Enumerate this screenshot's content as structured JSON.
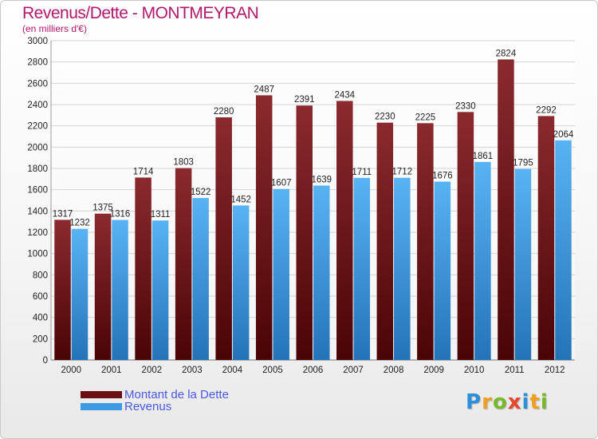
{
  "header": {
    "title": "Revenus/Dette - MONTMEYRAN",
    "subtitle": "(en milliers d'€)"
  },
  "colors": {
    "dette": "#6b0f14",
    "revenus": "#3d9be4",
    "title": "#b0186e",
    "legend_text": "#4b57e6"
  },
  "legend": [
    {
      "label": "Montant de la Dette",
      "color": "#6b0f14"
    },
    {
      "label": "Revenus",
      "color": "#3d9be4"
    }
  ],
  "logo": {
    "text": "Proxiti"
  },
  "chart_data": {
    "type": "bar",
    "title": "Revenus/Dette - MONTMEYRAN",
    "subtitle": "(en milliers d'€)",
    "xlabel": "",
    "ylabel": "",
    "categories": [
      "2000",
      "2001",
      "2002",
      "2003",
      "2004",
      "2005",
      "2006",
      "2007",
      "2008",
      "2009",
      "2010",
      "2011",
      "2012"
    ],
    "series": [
      {
        "name": "Montant de la Dette",
        "color": "#6b0f14",
        "values": [
          1317,
          1375,
          1714,
          1803,
          2280,
          2487,
          2391,
          2434,
          2230,
          2225,
          2330,
          2824,
          2292
        ]
      },
      {
        "name": "Revenus",
        "color": "#3d9be4",
        "values": [
          1232,
          1316,
          1311,
          1522,
          1452,
          1607,
          1639,
          1711,
          1712,
          1676,
          1861,
          1795,
          2064
        ]
      }
    ],
    "ylim": [
      0,
      3000
    ],
    "yticks": [
      0,
      200,
      400,
      600,
      800,
      1000,
      1200,
      1400,
      1600,
      1800,
      2000,
      2200,
      2400,
      2600,
      2800,
      3000
    ],
    "grid": true,
    "legend_position": "bottom-left",
    "data_labels": true
  }
}
